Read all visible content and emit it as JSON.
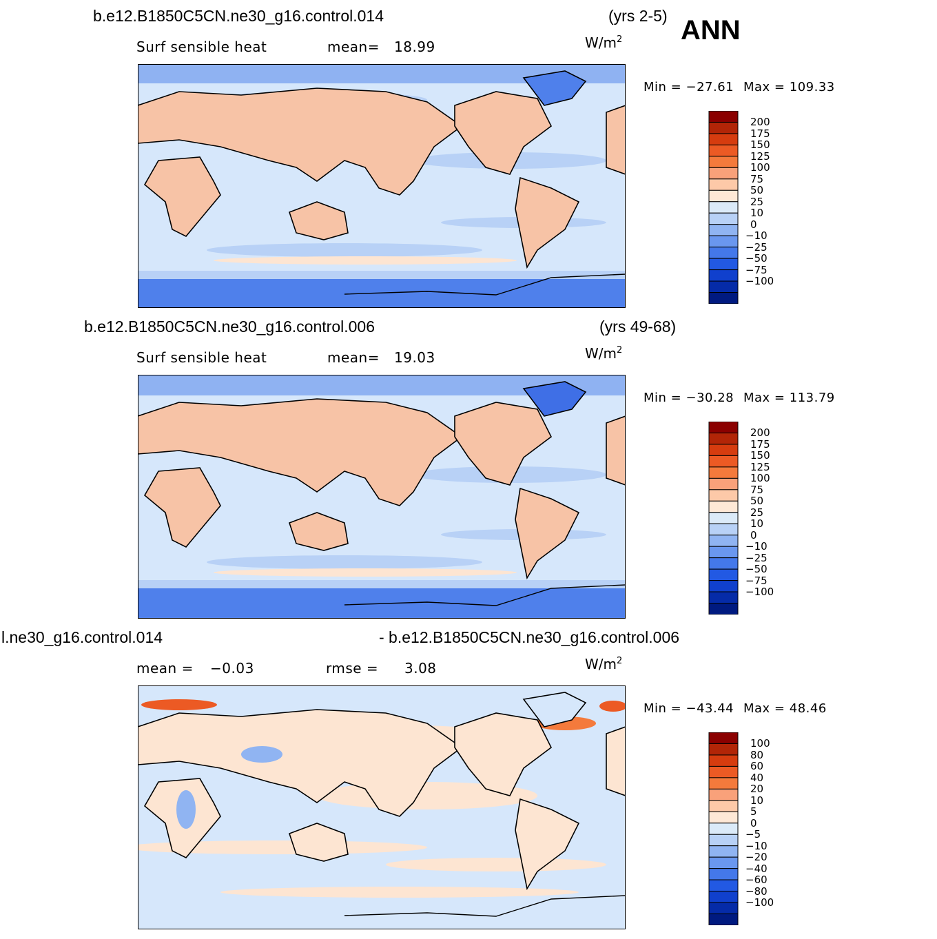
{
  "season": "ANN",
  "panels": [
    {
      "case": "b.e12.B1850C5CN.ne30_g16.control.014",
      "years": "(yrs 2-5)",
      "variable": "Surf  sensible  heat",
      "stat1_label": "mean=",
      "stat1_value": "18.99",
      "stat2_label": "",
      "stat2_value": "",
      "units_base": "W/m",
      "units_exp": "2",
      "min_label": "Min  =",
      "min_value": "−27.61",
      "max_label": "Max  =",
      "max_value": "109.33",
      "colorbar": {
        "colors": [
          "#8b0000",
          "#b22507",
          "#d63c0f",
          "#ec5a24",
          "#f47a3c",
          "#f9a17a",
          "#fdc9a8",
          "#fee8d6",
          "#dbeaf8",
          "#b8d1f6",
          "#90b4f2",
          "#6a97ef",
          "#4478ea",
          "#2259e3",
          "#1040cd",
          "#052ba8",
          "#001a80"
        ],
        "labels": [
          "200",
          "175",
          "150",
          "125",
          "100",
          "75",
          "50",
          "25",
          "10",
          "0",
          "−10",
          "−25",
          "−50",
          "−75",
          "−100"
        ]
      }
    },
    {
      "case": "b.e12.B1850C5CN.ne30_g16.control.006",
      "years": "(yrs 49-68)",
      "variable": "Surf  sensible  heat",
      "stat1_label": "mean=",
      "stat1_value": "19.03",
      "stat2_label": "",
      "stat2_value": "",
      "units_base": "W/m",
      "units_exp": "2",
      "min_label": "Min  =",
      "min_value": "−30.28",
      "max_label": "Max  =",
      "max_value": "113.79",
      "colorbar": {
        "colors": [
          "#8b0000",
          "#b22507",
          "#d63c0f",
          "#ec5a24",
          "#f47a3c",
          "#f9a17a",
          "#fdc9a8",
          "#fee8d6",
          "#dbeaf8",
          "#b8d1f6",
          "#90b4f2",
          "#6a97ef",
          "#4478ea",
          "#2259e3",
          "#1040cd",
          "#052ba8",
          "#001a80"
        ],
        "labels": [
          "200",
          "175",
          "150",
          "125",
          "100",
          "75",
          "50",
          "25",
          "10",
          "0",
          "−10",
          "−25",
          "−50",
          "−75",
          "−100"
        ]
      }
    },
    {
      "case": "l.ne30_g16.control.014",
      "years": "- b.e12.B1850C5CN.ne30_g16.control.006",
      "variable": "",
      "stat1_label": "mean  =",
      "stat1_value": "−0.03",
      "stat2_label": "rmse  =",
      "stat2_value": "3.08",
      "units_base": "W/m",
      "units_exp": "2",
      "min_label": "Min  =",
      "min_value": "−43.44",
      "max_label": "Max  =",
      "max_value": "48.46",
      "colorbar": {
        "colors": [
          "#8b0000",
          "#b22507",
          "#d63c0f",
          "#ec5a24",
          "#f47a3c",
          "#f9a17a",
          "#fdc9a8",
          "#fee8d6",
          "#dbeaf8",
          "#b8d1f6",
          "#90b4f2",
          "#6a97ef",
          "#4478ea",
          "#2259e3",
          "#1040cd",
          "#052ba8",
          "#001a80"
        ],
        "labels": [
          "100",
          "80",
          "60",
          "40",
          "20",
          "10",
          "5",
          "0",
          "−5",
          "−10",
          "−20",
          "−40",
          "−60",
          "−80",
          "−100"
        ]
      }
    }
  ]
}
